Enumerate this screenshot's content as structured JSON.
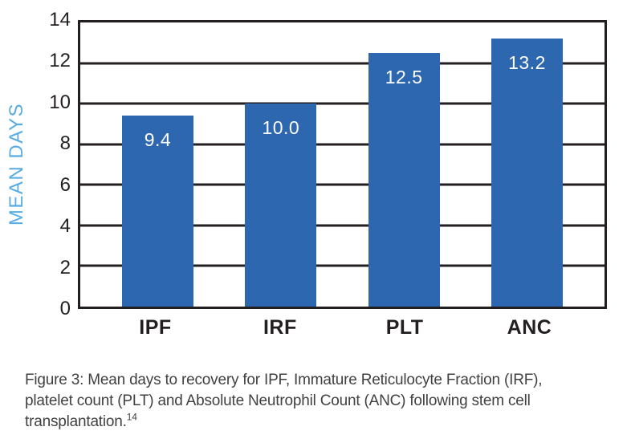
{
  "chart_data": {
    "type": "bar",
    "title": "",
    "categories": [
      "IPF",
      "IRF",
      "PLT",
      "ANC"
    ],
    "values": [
      9.4,
      10.0,
      12.5,
      13.2
    ],
    "value_labels": [
      "9.4",
      "10.0",
      "12.5",
      "13.2"
    ],
    "xlabel": "",
    "ylabel": "MEAN DAYS",
    "ylim": [
      0,
      14
    ],
    "yticks": [
      0,
      2,
      4,
      6,
      8,
      10,
      12,
      14
    ],
    "grid": "horizontal",
    "legend": "none",
    "bar_color": "#2C67B0",
    "ylabel_color": "#57ADE2",
    "axis_color": "#231F20",
    "value_label_color": "#FFFFFF"
  },
  "caption": {
    "line1": "Figure 3:  Mean days to recovery for IPF, Immature Reticulocyte Fraction (IRF),",
    "line2": "platelet count (PLT) and Absolute Neutrophil Count (ANC) following stem cell",
    "line3": "transplantation.",
    "reference": "14"
  }
}
